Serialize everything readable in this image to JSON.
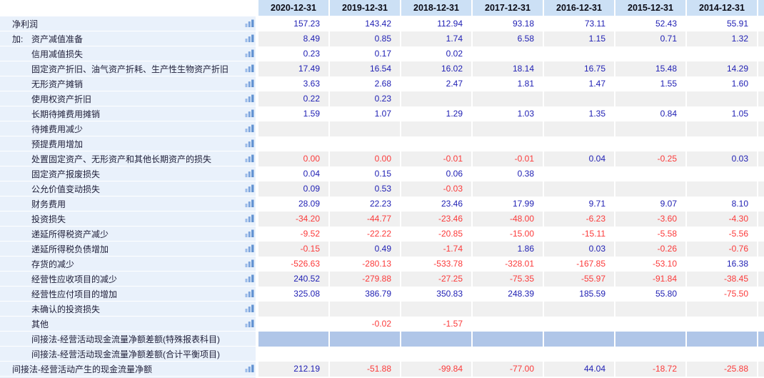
{
  "table": {
    "columns": [
      "2020-12-31",
      "2019-12-31",
      "2018-12-31",
      "2017-12-31",
      "2016-12-31",
      "2015-12-31",
      "2014-12-31"
    ],
    "rows": [
      {
        "prefix": "",
        "label": "净利润",
        "indent": 1,
        "icon": true,
        "highlight": false,
        "values": [
          "157.23",
          "143.42",
          "112.94",
          "93.18",
          "73.11",
          "52.43",
          "55.91"
        ]
      },
      {
        "prefix": "加:",
        "label": "资产减值准备",
        "indent": 2,
        "icon": true,
        "highlight": false,
        "values": [
          "8.49",
          "0.85",
          "1.74",
          "6.58",
          "1.15",
          "0.71",
          "1.32"
        ]
      },
      {
        "prefix": "",
        "label": "信用减值损失",
        "indent": 2,
        "icon": true,
        "highlight": false,
        "values": [
          "0.23",
          "0.17",
          "0.02",
          "",
          "",
          "",
          ""
        ]
      },
      {
        "prefix": "",
        "label": "固定资产折旧、油气资产折耗、生产性生物资产折旧",
        "indent": 2,
        "icon": true,
        "highlight": false,
        "values": [
          "17.49",
          "16.54",
          "16.02",
          "18.14",
          "16.75",
          "15.48",
          "14.29"
        ]
      },
      {
        "prefix": "",
        "label": "无形资产摊销",
        "indent": 2,
        "icon": true,
        "highlight": false,
        "values": [
          "3.63",
          "2.68",
          "2.47",
          "1.81",
          "1.47",
          "1.55",
          "1.60"
        ]
      },
      {
        "prefix": "",
        "label": "使用权资产折旧",
        "indent": 2,
        "icon": true,
        "highlight": false,
        "values": [
          "0.22",
          "0.23",
          "",
          "",
          "",
          "",
          ""
        ]
      },
      {
        "prefix": "",
        "label": "长期待摊费用摊销",
        "indent": 2,
        "icon": true,
        "highlight": false,
        "values": [
          "1.59",
          "1.07",
          "1.29",
          "1.03",
          "1.35",
          "0.84",
          "1.05"
        ]
      },
      {
        "prefix": "",
        "label": "待摊费用减少",
        "indent": 2,
        "icon": true,
        "highlight": false,
        "values": [
          "",
          "",
          "",
          "",
          "",
          "",
          ""
        ]
      },
      {
        "prefix": "",
        "label": "预提费用增加",
        "indent": 2,
        "icon": true,
        "highlight": false,
        "values": [
          "",
          "",
          "",
          "",
          "",
          "",
          ""
        ]
      },
      {
        "prefix": "",
        "label": "处置固定资产、无形资产和其他长期资产的损失",
        "indent": 2,
        "icon": true,
        "highlight": false,
        "values": [
          "0.00",
          "0.00",
          "-0.01",
          "-0.01",
          "0.04",
          "-0.25",
          "0.03"
        ]
      },
      {
        "prefix": "",
        "label": "固定资产报废损失",
        "indent": 2,
        "icon": true,
        "highlight": false,
        "values": [
          "0.04",
          "0.15",
          "0.06",
          "0.38",
          "",
          "",
          ""
        ]
      },
      {
        "prefix": "",
        "label": "公允价值变动损失",
        "indent": 2,
        "icon": true,
        "highlight": false,
        "values": [
          "0.09",
          "0.53",
          "-0.03",
          "",
          "",
          "",
          ""
        ]
      },
      {
        "prefix": "",
        "label": "财务费用",
        "indent": 2,
        "icon": true,
        "highlight": false,
        "values": [
          "28.09",
          "22.23",
          "23.46",
          "17.99",
          "9.71",
          "9.07",
          "8.10"
        ]
      },
      {
        "prefix": "",
        "label": "投资损失",
        "indent": 2,
        "icon": true,
        "highlight": false,
        "values": [
          "-34.20",
          "-44.77",
          "-23.46",
          "-48.00",
          "-6.23",
          "-3.60",
          "-4.30"
        ]
      },
      {
        "prefix": "",
        "label": "递延所得税资产减少",
        "indent": 2,
        "icon": true,
        "highlight": false,
        "values": [
          "-9.52",
          "-22.22",
          "-20.85",
          "-15.00",
          "-15.11",
          "-5.58",
          "-5.56"
        ]
      },
      {
        "prefix": "",
        "label": "递延所得税负债增加",
        "indent": 2,
        "icon": true,
        "highlight": false,
        "values": [
          "-0.15",
          "0.49",
          "-1.74",
          "1.86",
          "0.03",
          "-0.26",
          "-0.76"
        ]
      },
      {
        "prefix": "",
        "label": "存货的减少",
        "indent": 2,
        "icon": true,
        "highlight": false,
        "values": [
          "-526.63",
          "-280.13",
          "-533.78",
          "-328.01",
          "-167.85",
          "-53.10",
          "16.38"
        ]
      },
      {
        "prefix": "",
        "label": "经营性应收项目的减少",
        "indent": 2,
        "icon": true,
        "highlight": false,
        "values": [
          "240.52",
          "-279.88",
          "-27.25",
          "-75.35",
          "-55.97",
          "-91.84",
          "-38.45"
        ]
      },
      {
        "prefix": "",
        "label": "经营性应付项目的增加",
        "indent": 2,
        "icon": true,
        "highlight": false,
        "values": [
          "325.08",
          "386.79",
          "350.83",
          "248.39",
          "185.59",
          "55.80",
          "-75.50"
        ]
      },
      {
        "prefix": "",
        "label": "未确认的投资损失",
        "indent": 2,
        "icon": true,
        "highlight": false,
        "values": [
          "",
          "",
          "",
          "",
          "",
          "",
          ""
        ]
      },
      {
        "prefix": "",
        "label": "其他",
        "indent": 2,
        "icon": true,
        "highlight": false,
        "values": [
          "",
          "-0.02",
          "-1.57",
          "",
          "",
          "",
          ""
        ]
      },
      {
        "prefix": "",
        "label": "间接法-经营活动现金流量净额差额(特殊报表科目)",
        "indent": 2,
        "icon": false,
        "highlight": true,
        "values": [
          "",
          "",
          "",
          "",
          "",
          "",
          ""
        ]
      },
      {
        "prefix": "",
        "label": "间接法-经营活动现金流量净额差额(合计平衡项目)",
        "indent": 2,
        "icon": false,
        "highlight": false,
        "values": [
          "",
          "",
          "",
          "",
          "",
          "",
          ""
        ]
      },
      {
        "prefix": "",
        "label": "间接法-经营活动产生的现金流量净额",
        "indent": 1,
        "icon": true,
        "highlight": false,
        "values": [
          "212.19",
          "-51.88",
          "-99.84",
          "-77.00",
          "44.04",
          "-18.72",
          "-25.88"
        ]
      }
    ]
  },
  "icons": {
    "row_icon": "bar-chart-icon"
  },
  "colors": {
    "header_bg": "#cce0f5",
    "label_column_bg": "#e9f1fb",
    "row_alt_bg": "#f0f0f0",
    "highlight_row_bg": "#b0c6e8",
    "positive_value": "#2121b4",
    "negative_value": "#fb3a3a",
    "icon_bar_colors": [
      "#9cbbe9",
      "#7fa6de",
      "#6292d2"
    ]
  }
}
